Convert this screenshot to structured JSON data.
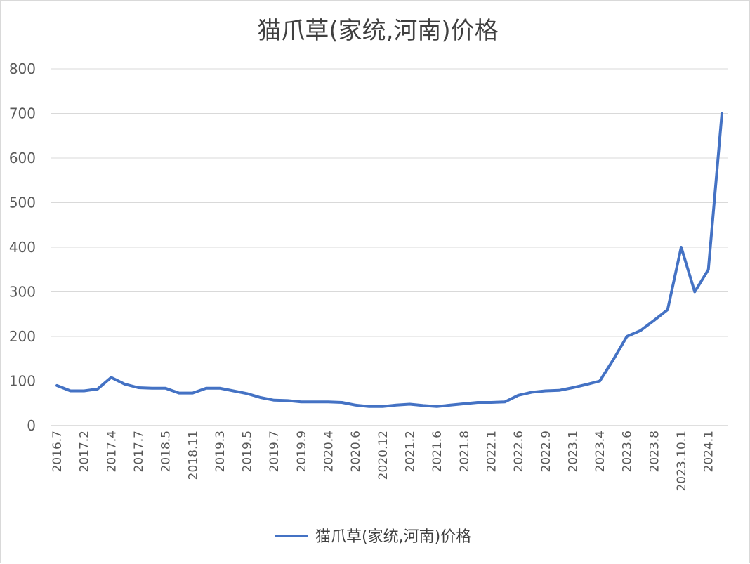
{
  "chart_data": {
    "type": "line",
    "title": "猫爪草(家统,河南)价格",
    "xlabel": "",
    "ylabel": "",
    "ylim": [
      0,
      800
    ],
    "yticks": [
      0,
      100,
      200,
      300,
      400,
      500,
      600,
      700,
      800
    ],
    "x_tick_labels": [
      "2016.7",
      "2017.2",
      "2017.4",
      "2017.7",
      "2018.5",
      "2018.11",
      "2019.3",
      "2019.5",
      "2019.7",
      "2019.9",
      "2020.4",
      "2020.6",
      "2020.12",
      "2021.2",
      "2021.6",
      "2021.8",
      "2022.1",
      "2022.6",
      "2022.9",
      "2023.1",
      "2023.4",
      "2023.6",
      "2023.8",
      "2023.10.1",
      "2024.1"
    ],
    "x": [
      "2016.7",
      "",
      "2017.2",
      "",
      "2017.4",
      "",
      "2017.7",
      "",
      "2018.5",
      "",
      "2018.11",
      "",
      "2019.3",
      "",
      "2019.5",
      "",
      "2019.7",
      "",
      "2019.9",
      "",
      "2020.4",
      "",
      "2020.6",
      "",
      "2020.12",
      "",
      "2021.2",
      "",
      "2021.6",
      "",
      "2021.8",
      "",
      "2022.1",
      "",
      "2022.6",
      "",
      "2022.9",
      "",
      "2023.1",
      "",
      "2023.4",
      "",
      "2023.6",
      "",
      "2023.8",
      "",
      "2023.10.1",
      "",
      "2024.1",
      ""
    ],
    "series": [
      {
        "name": "猫爪草(家统,河南)价格",
        "color": "#4472c4",
        "values": [
          90,
          78,
          78,
          82,
          108,
          93,
          85,
          84,
          84,
          73,
          73,
          84,
          84,
          78,
          72,
          63,
          57,
          56,
          53,
          53,
          53,
          52,
          46,
          43,
          43,
          46,
          48,
          45,
          43,
          46,
          49,
          52,
          52,
          53,
          68,
          75,
          78,
          79,
          85,
          92,
          100,
          148,
          200,
          213,
          236,
          260,
          400,
          300,
          350,
          700
        ]
      }
    ],
    "grid": true,
    "legend": "bottom"
  }
}
